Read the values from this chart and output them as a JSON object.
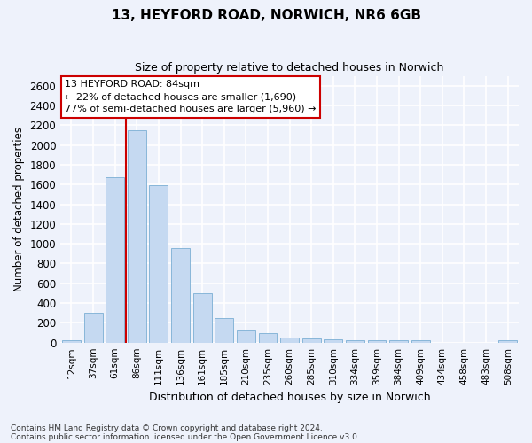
{
  "title_line1": "13, HEYFORD ROAD, NORWICH, NR6 6GB",
  "title_line2": "Size of property relative to detached houses in Norwich",
  "xlabel": "Distribution of detached houses by size in Norwich",
  "ylabel": "Number of detached properties",
  "categories": [
    "12sqm",
    "37sqm",
    "61sqm",
    "86sqm",
    "111sqm",
    "136sqm",
    "161sqm",
    "185sqm",
    "210sqm",
    "235sqm",
    "260sqm",
    "285sqm",
    "310sqm",
    "334sqm",
    "359sqm",
    "384sqm",
    "409sqm",
    "434sqm",
    "458sqm",
    "483sqm",
    "508sqm"
  ],
  "bar_heights": [
    25,
    300,
    1670,
    2150,
    1590,
    960,
    500,
    250,
    120,
    100,
    50,
    40,
    35,
    20,
    20,
    20,
    20,
    0,
    0,
    0,
    25
  ],
  "bar_color": "#c5d9f1",
  "bar_edge_color": "#7bafd4",
  "vline_color": "#cc0000",
  "vline_x_index": 3,
  "annotation_text": "13 HEYFORD ROAD: 84sqm\n← 22% of detached houses are smaller (1,690)\n77% of semi-detached houses are larger (5,960) →",
  "annotation_box_color": "#ffffff",
  "annotation_box_edge_color": "#cc0000",
  "ylim": [
    0,
    2700
  ],
  "yticks": [
    0,
    200,
    400,
    600,
    800,
    1000,
    1200,
    1400,
    1600,
    1800,
    2000,
    2200,
    2400,
    2600
  ],
  "footnote1": "Contains HM Land Registry data © Crown copyright and database right 2024.",
  "footnote2": "Contains public sector information licensed under the Open Government Licence v3.0.",
  "bg_color": "#eef2fb",
  "plot_bg_color": "#eef2fb",
  "grid_color": "#ffffff"
}
